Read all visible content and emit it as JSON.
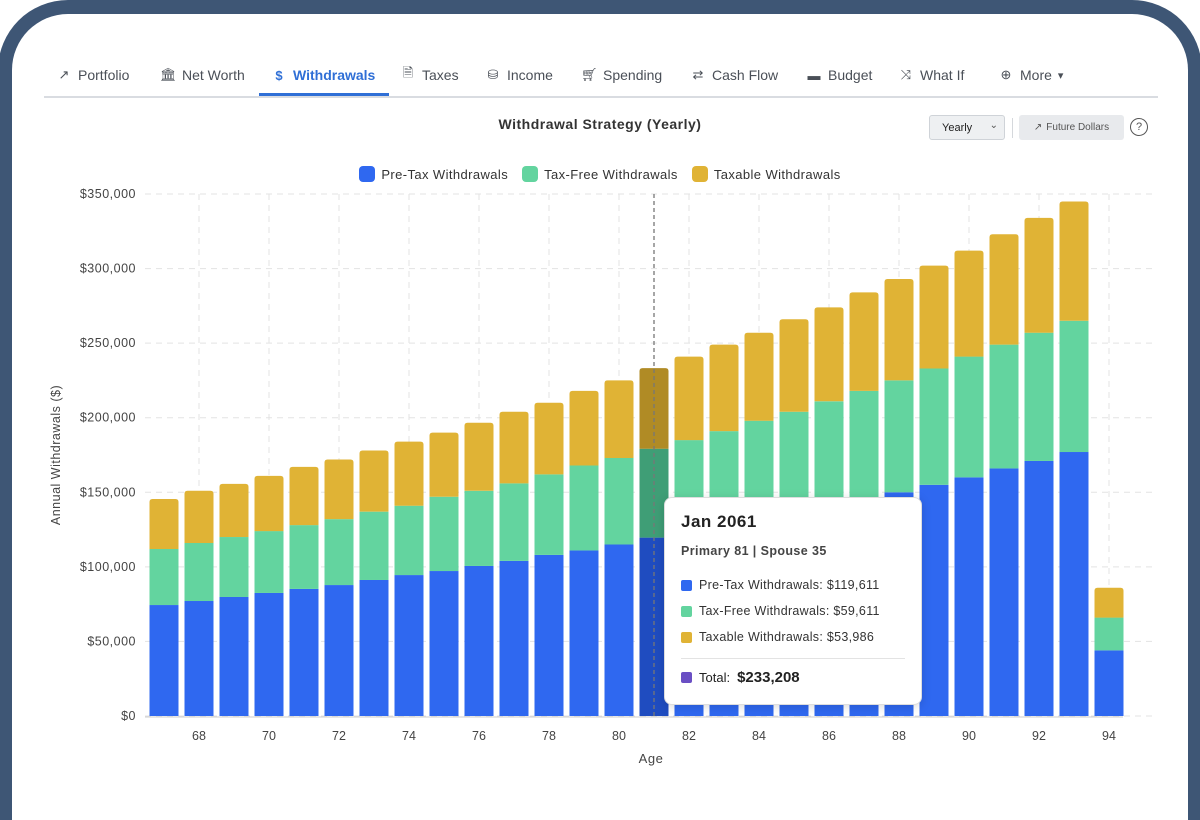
{
  "nav": {
    "tabs": [
      {
        "label": "Portfolio",
        "icon": "chart-line-icon",
        "active": false
      },
      {
        "label": "Net Worth",
        "icon": "bank-icon",
        "active": false
      },
      {
        "label": "Withdrawals",
        "icon": "hand-dollar-icon",
        "active": true
      },
      {
        "label": "Taxes",
        "icon": "tax-file-icon",
        "active": false
      },
      {
        "label": "Income",
        "icon": "coins-icon",
        "active": false
      },
      {
        "label": "Spending",
        "icon": "cart-icon",
        "active": false
      },
      {
        "label": "Cash Flow",
        "icon": "arrows-exchange-icon",
        "active": false
      },
      {
        "label": "Budget",
        "icon": "wallet-icon",
        "active": false
      },
      {
        "label": "What If",
        "icon": "shuffle-icon",
        "active": false
      },
      {
        "label": "More",
        "icon": "plus-circle-icon",
        "active": false
      }
    ]
  },
  "controls": {
    "period": "Yearly",
    "future_dollars": "Future Dollars",
    "help": "?"
  },
  "colors": {
    "pretax": "#2f68f0",
    "taxfree": "#63d49f",
    "taxable": "#e0b335",
    "accent": "#2f6fd6",
    "total": "#6a4fc4"
  },
  "tooltip": {
    "date": "Jan 2061",
    "people": "Primary 81 | Spouse 35",
    "pretax": "Pre-Tax Withdrawals: $119,611",
    "taxfree": "Tax-Free Withdrawals: $59,611",
    "taxable": "Taxable Withdrawals: $53,986",
    "total_label": "Total:",
    "total_value": "$233,208"
  },
  "chart_data": {
    "type": "bar",
    "stacked": true,
    "title": "Withdrawal Strategy (Yearly)",
    "xlabel": "Age",
    "ylabel": "Annual Withdrawals ($)",
    "ylim": [
      0,
      350000
    ],
    "yticks": [
      "$0",
      "$50,000",
      "$100,000",
      "$150,000",
      "$200,000",
      "$250,000",
      "$300,000",
      "$350,000"
    ],
    "xticks": [
      "68",
      "70",
      "72",
      "74",
      "76",
      "78",
      "80",
      "82",
      "84",
      "86",
      "88",
      "90",
      "92",
      "94"
    ],
    "grid": true,
    "legend_position": "top",
    "highlighted": 81,
    "categories": [
      67,
      68,
      69,
      70,
      71,
      72,
      73,
      74,
      75,
      76,
      77,
      78,
      79,
      80,
      81,
      82,
      83,
      84,
      85,
      86,
      87,
      88,
      89,
      90,
      91,
      92,
      93,
      94
    ],
    "series": [
      {
        "name": "Pre-Tax Withdrawals",
        "values": [
          74400,
          77100,
          79800,
          82500,
          85200,
          87800,
          91200,
          94500,
          97200,
          100600,
          104000,
          108000,
          111000,
          115000,
          119611,
          124000,
          128000,
          132000,
          137000,
          141000,
          146000,
          150000,
          155000,
          160000,
          166000,
          171000,
          177000,
          44000
        ]
      },
      {
        "name": "Tax-Free Withdrawals",
        "values": [
          37600,
          38900,
          40200,
          41500,
          42800,
          44200,
          45800,
          46500,
          49800,
          50400,
          52000,
          54000,
          57000,
          58000,
          59611,
          61000,
          63000,
          66000,
          67000,
          70000,
          72000,
          75000,
          78000,
          81000,
          83000,
          86000,
          88000,
          22000
        ]
      },
      {
        "name": "Taxable Withdrawals",
        "values": [
          33500,
          35000,
          35600,
          37000,
          39000,
          40000,
          41000,
          43000,
          43000,
          45600,
          48000,
          48000,
          50000,
          52000,
          53986,
          56000,
          58000,
          59000,
          62000,
          63000,
          66000,
          68000,
          69000,
          71000,
          74000,
          77000,
          80000,
          20000
        ]
      }
    ]
  }
}
